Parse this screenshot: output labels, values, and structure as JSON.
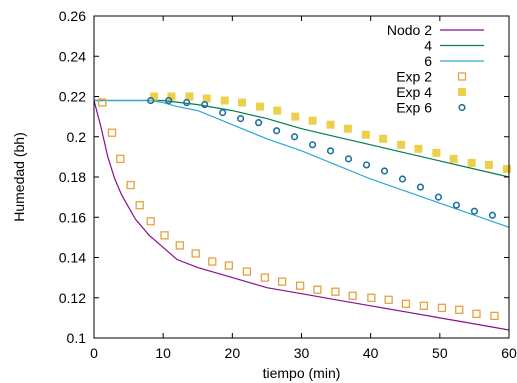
{
  "chart_data": {
    "type": "line",
    "xlabel": "tiempo (min)",
    "ylabel": "Humedad (bh)",
    "xlim": [
      0,
      60
    ],
    "ylim": [
      0.1,
      0.26
    ],
    "x_ticks": [
      0,
      10,
      20,
      30,
      40,
      50,
      60
    ],
    "y_ticks": [
      0.1,
      0.12,
      0.14,
      0.16,
      0.18,
      0.2,
      0.22,
      0.24,
      0.26
    ],
    "x_tick_labels": [
      "0",
      "10",
      "20",
      "30",
      "40",
      "50",
      "60"
    ],
    "y_tick_labels": [
      "0.1",
      "0.12",
      "0.14",
      "0.16",
      "0.18",
      "0.2",
      "0.22",
      "0.24",
      "0.26"
    ],
    "grid": false,
    "legend_position": "top-right",
    "series": [
      {
        "name": "Nodo 2",
        "style": "line",
        "color": "#8b0f8b",
        "x": [
          0,
          1,
          2,
          3,
          4,
          5,
          6,
          8,
          10,
          12,
          15,
          20,
          25,
          30,
          35,
          40,
          45,
          50,
          55,
          60
        ],
        "y": [
          0.218,
          0.205,
          0.19,
          0.179,
          0.171,
          0.165,
          0.159,
          0.151,
          0.145,
          0.139,
          0.135,
          0.13,
          0.125,
          0.122,
          0.119,
          0.116,
          0.113,
          0.11,
          0.107,
          0.104
        ]
      },
      {
        "name": "4",
        "style": "line",
        "color": "#007f4f",
        "x": [
          0,
          5,
          10,
          15,
          20,
          25,
          30,
          35,
          40,
          45,
          50,
          55,
          60
        ],
        "y": [
          0.218,
          0.218,
          0.218,
          0.216,
          0.213,
          0.209,
          0.204,
          0.2,
          0.196,
          0.192,
          0.188,
          0.184,
          0.18
        ]
      },
      {
        "name": "6",
        "style": "line",
        "color": "#2fa9d0",
        "x": [
          0,
          5,
          8,
          10,
          12,
          15,
          20,
          25,
          30,
          35,
          40,
          45,
          50,
          55,
          60
        ],
        "y": [
          0.218,
          0.218,
          0.218,
          0.217,
          0.215,
          0.213,
          0.206,
          0.199,
          0.193,
          0.186,
          0.179,
          0.173,
          0.167,
          0.161,
          0.155
        ]
      },
      {
        "name": "Exp 2",
        "style": "open-square",
        "color": "#e6a23c",
        "x": [
          1.2,
          2.6,
          3.8,
          5.3,
          6.6,
          8.2,
          10.2,
          12.4,
          14.7,
          17.1,
          19.5,
          22.1,
          24.7,
          27.2,
          29.8,
          32.3,
          34.9,
          37.4,
          40.1,
          42.6,
          45.1,
          47.7,
          50.3,
          52.8,
          55.3,
          57.9
        ],
        "y": [
          0.217,
          0.202,
          0.189,
          0.176,
          0.166,
          0.158,
          0.151,
          0.146,
          0.142,
          0.138,
          0.136,
          0.133,
          0.13,
          0.128,
          0.126,
          0.124,
          0.123,
          0.121,
          0.12,
          0.119,
          0.117,
          0.116,
          0.115,
          0.114,
          0.112,
          0.111
        ]
      },
      {
        "name": "Exp 4",
        "style": "filled-square",
        "color": "#ecd04a",
        "x": [
          8.7,
          11.2,
          13.8,
          16.3,
          18.9,
          21.4,
          24.0,
          26.5,
          29.1,
          31.6,
          34.2,
          36.7,
          39.3,
          41.8,
          44.4,
          46.9,
          49.5,
          52.0,
          54.6,
          57.1,
          59.7
        ],
        "y": [
          0.22,
          0.22,
          0.22,
          0.219,
          0.218,
          0.217,
          0.215,
          0.213,
          0.21,
          0.208,
          0.206,
          0.204,
          0.201,
          0.199,
          0.196,
          0.194,
          0.192,
          0.189,
          0.187,
          0.186,
          0.184
        ]
      },
      {
        "name": "Exp 6",
        "style": "open-circle",
        "color": "#1f6f9f",
        "x": [
          8.2,
          10.8,
          13.4,
          16.0,
          18.6,
          21.2,
          23.8,
          26.4,
          29.0,
          31.6,
          34.2,
          36.8,
          39.4,
          42.0,
          44.6,
          47.2,
          49.8,
          52.4,
          55.0,
          57.6
        ],
        "y": [
          0.218,
          0.218,
          0.217,
          0.216,
          0.212,
          0.209,
          0.207,
          0.203,
          0.2,
          0.196,
          0.193,
          0.189,
          0.186,
          0.183,
          0.179,
          0.175,
          0.17,
          0.166,
          0.163,
          0.161
        ]
      }
    ]
  }
}
